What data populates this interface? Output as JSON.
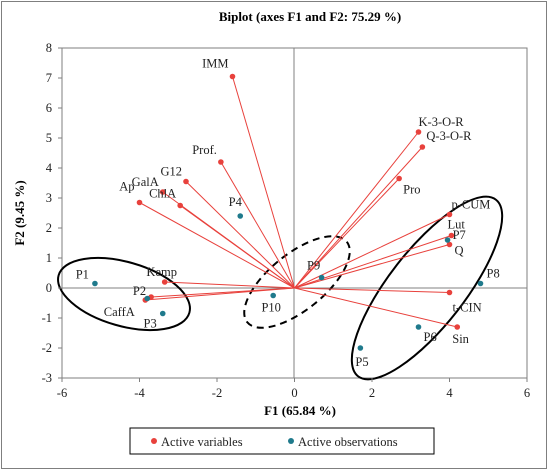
{
  "chart_data": {
    "type": "scatter",
    "title": "Biplot (axes F1 and F2: 75.29 %)",
    "xlabel": "F1 (65.84 %)",
    "ylabel": "F2 (9.45 %)",
    "xlim": [
      -6,
      6
    ],
    "ylim": [
      -3,
      8
    ],
    "xticks": [
      "-6",
      "-4",
      "-2",
      "0",
      "2",
      "4",
      "6"
    ],
    "yticks": [
      "-3",
      "-2",
      "-1",
      "0",
      "1",
      "2",
      "3",
      "4",
      "5",
      "6",
      "7",
      "8"
    ],
    "grid": false,
    "legend_position": "bottom",
    "colors": {
      "variables": "#e8413c",
      "observations": "#1f7a8c"
    },
    "series": [
      {
        "name": "Active variables",
        "points": [
          {
            "label": "IMM",
            "x": -1.6,
            "y": 7.05
          },
          {
            "label": "K-3-O-R",
            "x": 3.2,
            "y": 5.2
          },
          {
            "label": "Q-3-O-R",
            "x": 3.3,
            "y": 4.7
          },
          {
            "label": "Prof.",
            "x": -1.9,
            "y": 4.2
          },
          {
            "label": "Pro",
            "x": 2.7,
            "y": 3.65
          },
          {
            "label": "G12",
            "x": -2.8,
            "y": 3.55
          },
          {
            "label": "GalA",
            "x": -3.4,
            "y": 3.2
          },
          {
            "label": "ChlA",
            "x": -2.95,
            "y": 2.75
          },
          {
            "label": "Ap",
            "x": -4.0,
            "y": 2.85
          },
          {
            "label": "p-CUM",
            "x": 4.0,
            "y": 2.45
          },
          {
            "label": "Lut",
            "x": 4.05,
            "y": 1.75
          },
          {
            "label": "Q",
            "x": 4.0,
            "y": 1.45
          },
          {
            "label": "Kemp",
            "x": -3.35,
            "y": 0.2
          },
          {
            "label": "P2",
            "x": -3.7,
            "y": -0.3
          },
          {
            "label": "CaffA",
            "x": -3.85,
            "y": -0.4
          },
          {
            "label": "t-CIN",
            "x": 4.0,
            "y": -0.15
          },
          {
            "label": "Sin",
            "x": 4.2,
            "y": -1.3
          }
        ]
      },
      {
        "name": "Active observations",
        "points": [
          {
            "label": "P1",
            "x": -5.15,
            "y": 0.15
          },
          {
            "label": "P2",
            "x": -3.8,
            "y": -0.35
          },
          {
            "label": "P3",
            "x": -3.4,
            "y": -0.85
          },
          {
            "label": "P4",
            "x": -1.4,
            "y": 2.4
          },
          {
            "label": "P10",
            "x": -0.55,
            "y": -0.25
          },
          {
            "label": "P9",
            "x": 0.7,
            "y": 0.35
          },
          {
            "label": "P5",
            "x": 1.7,
            "y": -2.0
          },
          {
            "label": "P6",
            "x": 3.2,
            "y": -1.3
          },
          {
            "label": "P7",
            "x": 3.95,
            "y": 1.6
          },
          {
            "label": "P8",
            "x": 4.8,
            "y": 0.15
          }
        ]
      }
    ]
  }
}
